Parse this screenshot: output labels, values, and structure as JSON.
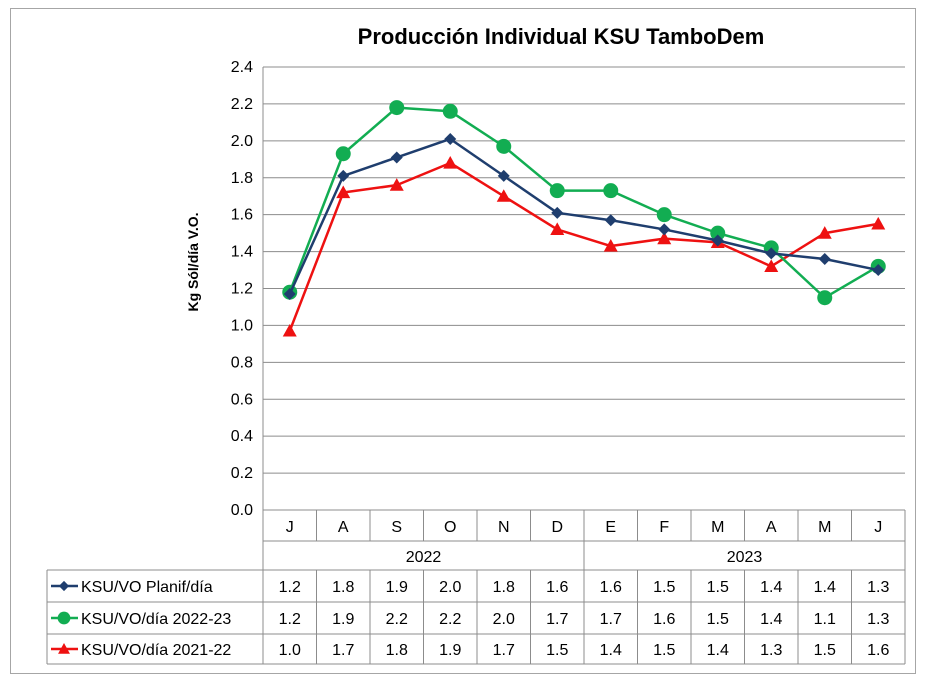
{
  "chart_data": {
    "type": "line",
    "title": "Producción Individual KSU TamboDem",
    "ylabel": "Kg Sól/día V.O.",
    "xlabel": "",
    "ylim": [
      0.0,
      2.4
    ],
    "ytick_labels": [
      "0.0",
      "0.2",
      "0.4",
      "0.6",
      "0.8",
      "1.0",
      "1.2",
      "1.4",
      "1.6",
      "1.8",
      "2.0",
      "2.2",
      "2.4"
    ],
    "categories": [
      "J",
      "A",
      "S",
      "O",
      "N",
      "D",
      "E",
      "F",
      "M",
      "A",
      "M",
      "J"
    ],
    "year_groups": [
      {
        "label": "2022",
        "span": 6
      },
      {
        "label": "2023",
        "span": 6
      }
    ],
    "grid": true,
    "legend": "data-table",
    "series": [
      {
        "name": "KSU/VO Planif/día",
        "color": "#1f3e6e",
        "marker": "diamond",
        "values": [
          1.17,
          1.81,
          1.91,
          2.01,
          1.81,
          1.61,
          1.57,
          1.52,
          1.46,
          1.39,
          1.36,
          1.3
        ],
        "table_values": [
          "1.2",
          "1.8",
          "1.9",
          "2.0",
          "1.8",
          "1.6",
          "1.6",
          "1.5",
          "1.5",
          "1.4",
          "1.4",
          "1.3"
        ]
      },
      {
        "name": "KSU/VO/día 2022-23",
        "color": "#12ad52",
        "marker": "circle",
        "values": [
          1.18,
          1.93,
          2.18,
          2.16,
          1.97,
          1.73,
          1.73,
          1.6,
          1.5,
          1.42,
          1.15,
          1.32
        ],
        "table_values": [
          "1.2",
          "1.9",
          "2.2",
          "2.2",
          "2.0",
          "1.7",
          "1.7",
          "1.6",
          "1.5",
          "1.4",
          "1.1",
          "1.3"
        ]
      },
      {
        "name": "KSU/VO/día 2021-22",
        "color": "#ee1111",
        "marker": "triangle",
        "values": [
          0.97,
          1.72,
          1.76,
          1.88,
          1.7,
          1.52,
          1.43,
          1.47,
          1.45,
          1.32,
          1.5,
          1.55
        ],
        "table_values": [
          "1.0",
          "1.7",
          "1.8",
          "1.9",
          "1.7",
          "1.5",
          "1.4",
          "1.5",
          "1.4",
          "1.3",
          "1.5",
          "1.6"
        ]
      }
    ]
  }
}
